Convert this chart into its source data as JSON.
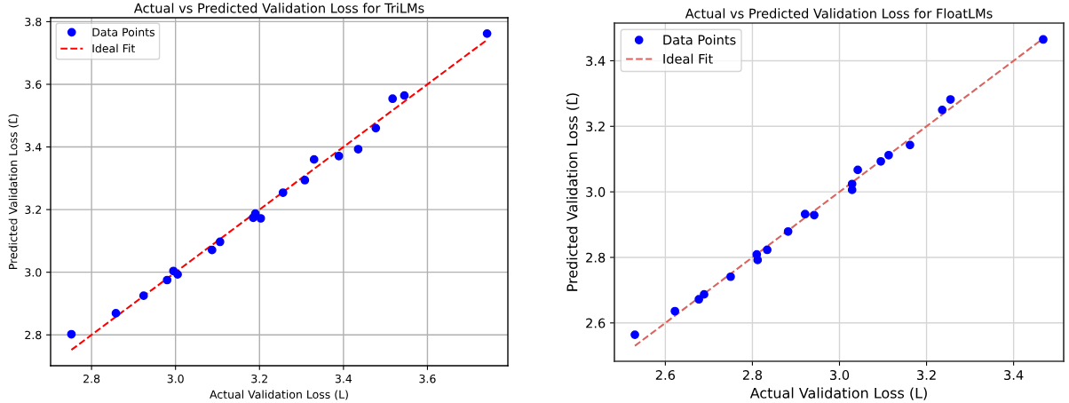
{
  "chart_data": [
    {
      "type": "scatter",
      "title": "Actual vs Predicted Validation Loss for TriLMs",
      "xlabel": "Actual Validation Loss (L)",
      "ylabel": "Predicted Validation Loss (L̂)",
      "xlim": [
        2.7025,
        3.7915
      ],
      "ylim": [
        2.7015,
        3.8125
      ],
      "xticks": [
        2.8,
        {
          "value": 3.0,
          "label": "3.0"
        },
        3.2,
        3.4,
        3.6
      ],
      "yticks": [
        2.8,
        {
          "value": 3.0,
          "label": "3.0"
        },
        3.2,
        3.4,
        3.6,
        3.8
      ],
      "grid": true,
      "legend": "top left",
      "series": [
        {
          "name": "Data Points",
          "color": "#0000ff",
          "marker": "circle",
          "x": [
            2.752,
            2.858,
            2.924,
            2.98,
            2.995,
            3.005,
            3.087,
            3.106,
            3.185,
            3.19,
            3.203,
            3.256,
            3.308,
            3.33,
            3.389,
            3.435,
            3.477,
            3.517,
            3.545,
            3.742
          ],
          "values": [
            2.802,
            2.869,
            2.925,
            2.975,
            3.004,
            2.993,
            3.071,
            3.097,
            3.174,
            3.187,
            3.172,
            3.254,
            3.294,
            3.36,
            3.371,
            3.393,
            3.46,
            3.554,
            3.564,
            3.762
          ]
        },
        {
          "name": "Ideal Fit",
          "type": "line",
          "color": "#ff0000",
          "line_style": "dashed",
          "x": [
            2.752,
            3.742
          ],
          "values": [
            2.752,
            3.742
          ]
        }
      ]
    },
    {
      "type": "scatter",
      "title": "Actual vs Predicted Validation Loss for FloatLMs",
      "xlabel": "Actual Validation Loss (L)",
      "ylabel": "Predicted Validation Loss (L̂)",
      "xlim": [
        2.483,
        3.515
      ],
      "ylim": [
        2.483,
        3.515
      ],
      "xticks": [
        2.6,
        2.8,
        {
          "value": 3.0,
          "label": "3.0"
        },
        3.2,
        3.4
      ],
      "yticks": [
        2.6,
        2.8,
        {
          "value": 3.0,
          "label": "3.0"
        },
        3.2,
        3.4
      ],
      "grid": true,
      "legend": "top left",
      "series": [
        {
          "name": "Data Points",
          "color": "#0000ff",
          "marker": "circle",
          "x": [
            2.53,
            2.622,
            2.677,
            2.689,
            2.75,
            2.81,
            2.812,
            2.834,
            2.882,
            2.921,
            2.942,
            3.029,
            3.029,
            3.042,
            3.095,
            3.113,
            3.162,
            3.236,
            3.255,
            3.468
          ],
          "values": [
            2.564,
            2.636,
            2.672,
            2.687,
            2.741,
            2.809,
            2.792,
            2.823,
            2.879,
            2.932,
            2.929,
            3.024,
            3.006,
            3.067,
            3.093,
            3.112,
            3.143,
            3.25,
            3.282,
            3.465
          ]
        },
        {
          "name": "Ideal Fit",
          "type": "line",
          "color": "#d9635f",
          "line_style": "dashed",
          "x": [
            2.53,
            3.468
          ],
          "values": [
            2.53,
            3.468
          ]
        }
      ]
    }
  ]
}
